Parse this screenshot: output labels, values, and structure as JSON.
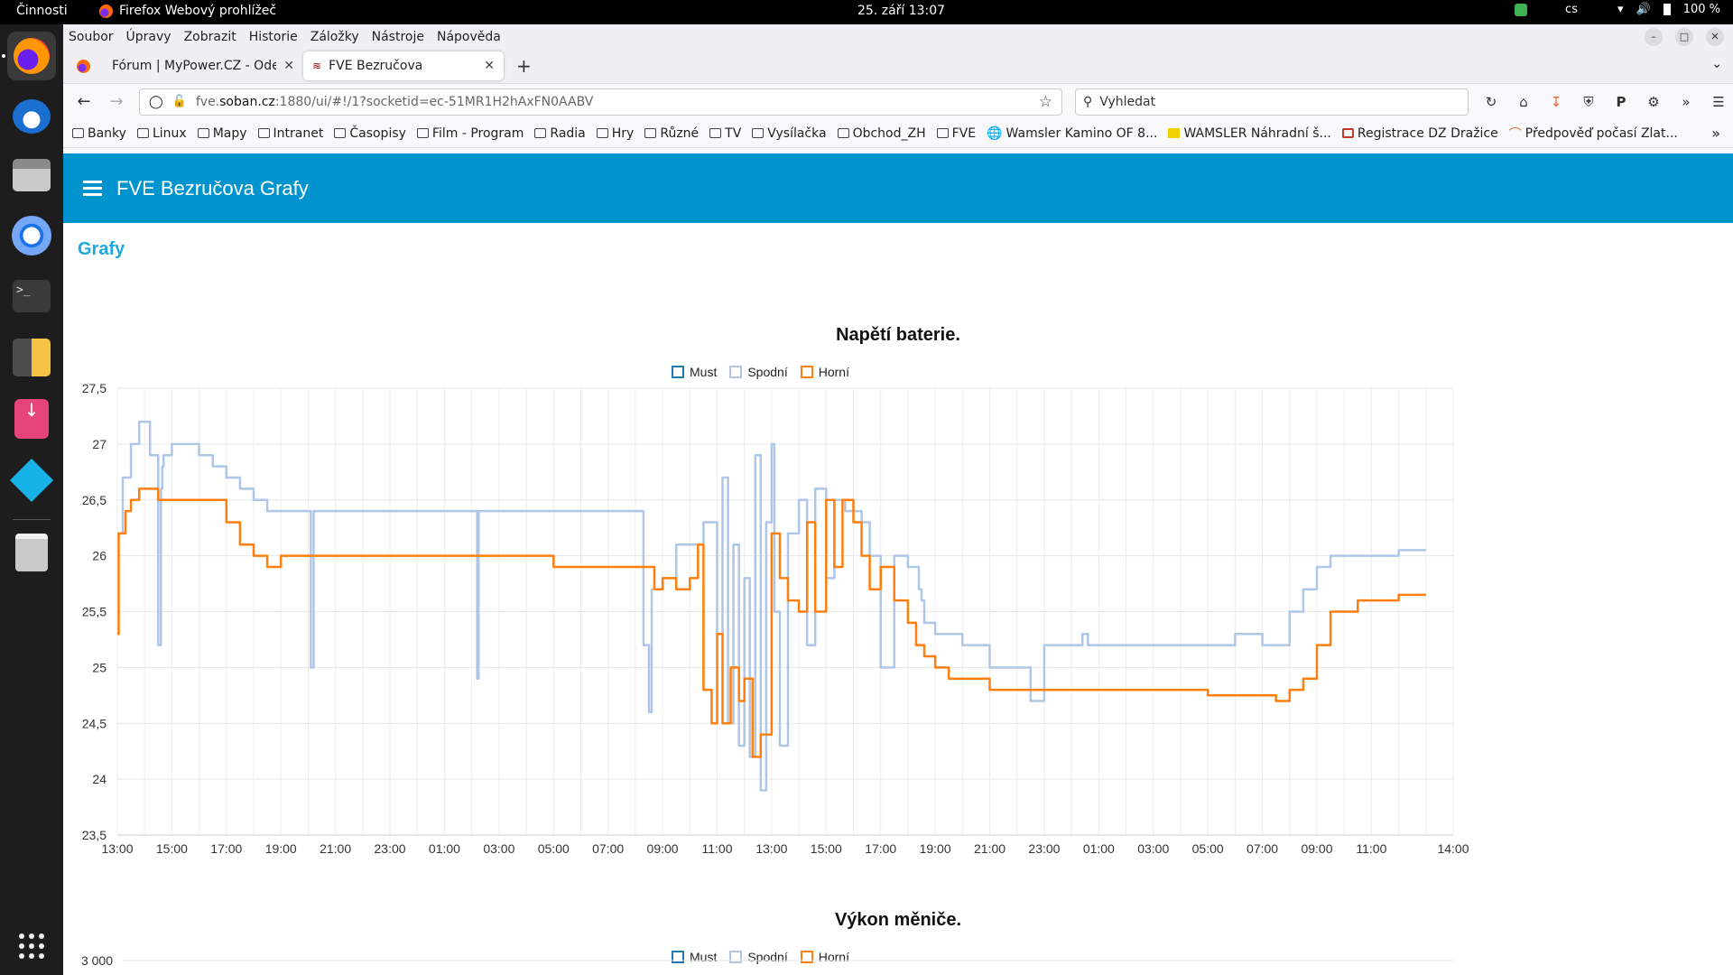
{
  "system": {
    "activities": "Činnosti",
    "app_name": "Firefox Webový prohlížeč",
    "clock": "25. září  13:07",
    "lang": "cs",
    "battery": "100 %"
  },
  "dock": {
    "items": [
      "firefox-icon",
      "thunderbird-icon",
      "files-icon",
      "chromium-icon",
      "terminal-icon",
      "calculator-icon",
      "installer-icon",
      "kodi-icon",
      "trash-icon"
    ],
    "apps_grid": "show-apps-icon"
  },
  "menubar": [
    "Soubor",
    "Úpravy",
    "Zobrazit",
    "Historie",
    "Záložky",
    "Nástroje",
    "Nápověda"
  ],
  "tabs": [
    {
      "title": "Fórum | MyPower.CZ - Odesl"
    },
    {
      "title": "FVE Bezručova"
    }
  ],
  "url": {
    "prefix": "fve.",
    "host": "soban.cz",
    "rest": ":1880/ui/#!/1?socketid=ec-51MR1H2hAxFN0AABV"
  },
  "search_placeholder": "Vyhledat",
  "bookmarks": [
    "Banky",
    "Linux",
    "Mapy",
    "Intranet",
    "Časopisy",
    "Film - Program",
    "Radia",
    "Hry",
    "Různé",
    "TV",
    "Vysílačka",
    "Obchod_ZH",
    "FVE",
    "Wamsler Kamino OF 8...",
    "WAMSLER Náhradní š...",
    "Registrace DZ Dražice",
    "Předpověď počasí Zlat..."
  ],
  "app": {
    "title": "FVE Bezručova Grafy",
    "group": "Grafy"
  },
  "chart1": {
    "title": "Napětí baterie.",
    "legend": [
      {
        "name": "Must",
        "color": "#1f77b4"
      },
      {
        "name": "Spodní",
        "color": "#aec7e8"
      },
      {
        "name": "Horní",
        "color": "#ff7f0e"
      }
    ]
  },
  "chart2": {
    "title": "Výkon měniče.",
    "legend": [
      {
        "name": "Must",
        "color": "#1f77b4"
      },
      {
        "name": "Spodní",
        "color": "#aec7e8"
      },
      {
        "name": "Horní",
        "color": "#ff7f0e"
      }
    ],
    "first_tick": "3 000"
  },
  "chart_data": [
    {
      "type": "line",
      "title": "Napětí baterie.",
      "ylim": [
        23.5,
        27.5
      ],
      "yticks": [
        "27,5",
        "27",
        "26,5",
        "26",
        "25,5",
        "25",
        "24,5",
        "24",
        "23,5"
      ],
      "xticks": [
        "13:00",
        "15:00",
        "17:00",
        "19:00",
        "21:00",
        "23:00",
        "01:00",
        "03:00",
        "05:00",
        "07:00",
        "09:00",
        "11:00",
        "13:00",
        "15:00",
        "17:00",
        "19:00",
        "21:00",
        "23:00",
        "01:00",
        "03:00",
        "05:00",
        "07:00",
        "09:00",
        "11:00",
        "14:00"
      ],
      "x_hours": [
        0,
        2,
        4,
        6,
        8,
        10,
        12,
        14,
        16,
        18,
        20,
        22,
        24,
        26,
        28,
        30,
        32,
        34,
        36,
        38,
        40,
        42,
        44,
        46,
        49
      ],
      "series": [
        {
          "name": "Spodní",
          "color": "#aec7e8",
          "x": [
            0,
            0.2,
            0.5,
            0.8,
            1.2,
            1.5,
            1.6,
            1.65,
            1.7,
            2,
            2.5,
            3,
            3.5,
            4,
            4.5,
            5,
            5.5,
            6,
            6.5,
            7,
            7.1,
            7.2,
            8,
            10,
            12,
            13,
            13.2,
            13.25,
            13.3,
            15,
            17,
            18,
            19.2,
            19.3,
            19.5,
            19.6,
            20,
            20.5,
            21,
            21.5,
            22,
            22.2,
            22.4,
            22.6,
            22.8,
            23,
            23.2,
            23.4,
            23.6,
            23.8,
            24,
            24.1,
            24.3,
            24.6,
            25,
            25.3,
            25.6,
            26,
            26.3,
            26.7,
            27,
            27.3,
            27.6,
            28,
            28.5,
            29,
            29.4,
            29.5,
            29.6,
            30,
            31,
            32,
            32.5,
            33,
            33.5,
            34,
            34.5,
            35,
            35.3,
            35.4,
            35.6,
            36,
            37,
            38,
            39,
            40,
            41,
            42,
            43,
            43.5,
            44,
            44.5,
            45,
            45.5,
            46,
            47,
            48
          ],
          "y": [
            26.2,
            26.7,
            27,
            27.2,
            26.9,
            25.2,
            26.6,
            26.8,
            26.9,
            27,
            27,
            26.9,
            26.8,
            26.7,
            26.6,
            26.5,
            26.4,
            26.4,
            26.4,
            26.4,
            25,
            26.4,
            26.4,
            26.4,
            26.4,
            26.4,
            24.9,
            26.4,
            26.4,
            26.4,
            26.4,
            26.4,
            26.4,
            25.2,
            24.6,
            25.7,
            25.8,
            26.1,
            26.1,
            26.3,
            25.3,
            26.7,
            24.5,
            26.1,
            24.3,
            25.8,
            24.2,
            26.9,
            23.9,
            26.3,
            27.0,
            25.5,
            24.3,
            26.2,
            26.5,
            25.2,
            26.6,
            25.8,
            26.5,
            26.4,
            26.4,
            26.3,
            26.0,
            25.0,
            26.0,
            25.9,
            25.7,
            25.6,
            25.4,
            25.3,
            25.2,
            25.0,
            25.0,
            25.0,
            24.7,
            25.2,
            25.2,
            25.2,
            25.2,
            25.3,
            25.2,
            25.2,
            25.2,
            25.2,
            25.2,
            25.2,
            25.3,
            25.2,
            25.5,
            25.7,
            25.9,
            26,
            26,
            26,
            26,
            26.05,
            26.05
          ]
        },
        {
          "name": "Horní",
          "color": "#ff7f0e",
          "x": [
            0,
            0.05,
            0.3,
            0.5,
            0.8,
            1,
            1.5,
            2,
            2.5,
            3,
            3.5,
            4,
            4.5,
            5,
            5.5,
            6,
            6.5,
            7,
            8,
            10,
            12,
            13,
            14,
            16,
            18,
            19.5,
            19.7,
            20,
            20.5,
            21,
            21.3,
            21.5,
            21.8,
            22,
            22.2,
            22.5,
            22.8,
            23,
            23.3,
            23.6,
            24,
            24.3,
            24.6,
            25,
            25.3,
            25.6,
            26,
            26.3,
            26.6,
            27,
            27.3,
            27.6,
            28,
            28.5,
            29,
            29.3,
            29.6,
            30,
            30.5,
            31,
            31.5,
            32,
            32.5,
            33,
            33.5,
            34,
            35,
            36,
            37,
            38,
            39,
            40,
            41,
            42,
            42.5,
            43,
            43.5,
            44,
            44.5,
            45,
            45.5,
            46,
            47,
            48
          ],
          "y": [
            25.3,
            26.2,
            26.4,
            26.5,
            26.6,
            26.6,
            26.5,
            26.5,
            26.5,
            26.5,
            26.5,
            26.3,
            26.1,
            26.0,
            25.9,
            26.0,
            26.0,
            26.0,
            26.0,
            26.0,
            26.0,
            26.0,
            26.0,
            25.9,
            25.9,
            25.9,
            25.7,
            25.8,
            25.7,
            25.8,
            26.1,
            24.8,
            24.5,
            25.3,
            24.5,
            25.0,
            24.7,
            24.9,
            24.2,
            24.4,
            26.2,
            25.8,
            25.6,
            25.5,
            26.3,
            25.5,
            26.5,
            25.9,
            26.5,
            26.3,
            26.0,
            25.7,
            25.9,
            25.6,
            25.4,
            25.2,
            25.1,
            25.0,
            24.9,
            24.9,
            24.9,
            24.8,
            24.8,
            24.8,
            24.8,
            24.8,
            24.8,
            24.8,
            24.8,
            24.8,
            24.8,
            24.75,
            24.75,
            24.75,
            24.7,
            24.8,
            24.9,
            25.2,
            25.5,
            25.5,
            25.6,
            25.6,
            25.65,
            25.65
          ]
        }
      ]
    },
    {
      "type": "line",
      "title": "Výkon měniče.",
      "yticks": [
        "3 000"
      ]
    }
  ]
}
